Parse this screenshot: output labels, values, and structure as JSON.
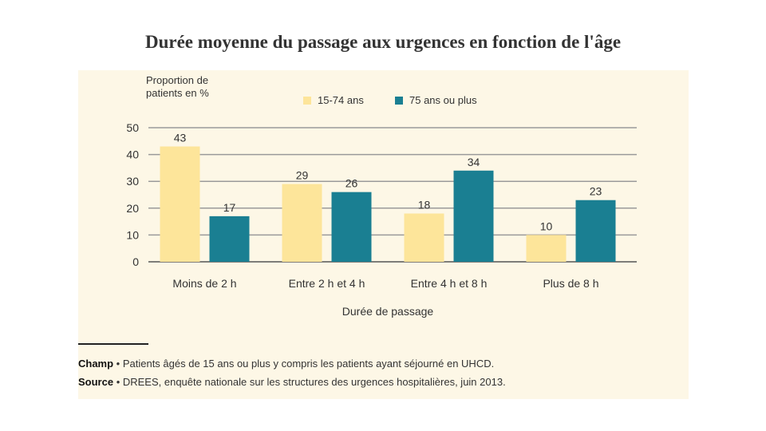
{
  "title": "Durée moyenne du passage aux urgences en fonction de l'âge",
  "colors": {
    "series1": "#fde59a",
    "series2": "#1a7f92",
    "grid": "#9a9a9a",
    "panel": "#fdf7e6"
  },
  "chart_data": {
    "type": "bar",
    "ylabel_lines": [
      "Proportion de",
      "patients en %"
    ],
    "xlabel": "Durée de passage",
    "categories": [
      "Moins de 2 h",
      "Entre 2 h et 4 h",
      "Entre 4 h et 8 h",
      "Plus de 8 h"
    ],
    "series": [
      {
        "name": "15-74 ans",
        "values": [
          43,
          29,
          18,
          10
        ]
      },
      {
        "name": "75 ans ou plus",
        "values": [
          17,
          26,
          34,
          23
        ]
      }
    ],
    "yticks": [
      0,
      10,
      20,
      30,
      40,
      50
    ],
    "ylim": [
      0,
      50
    ],
    "grid": true,
    "legend_position": "top"
  },
  "footer": {
    "champ_label": "Champ",
    "champ_text": " • Patients âgés de 15 ans ou plus y compris les patients ayant séjourné en UHCD.",
    "source_label": "Source",
    "source_text": " • DREES, enquête nationale sur les structures des urgences hospitalières, juin 2013."
  }
}
